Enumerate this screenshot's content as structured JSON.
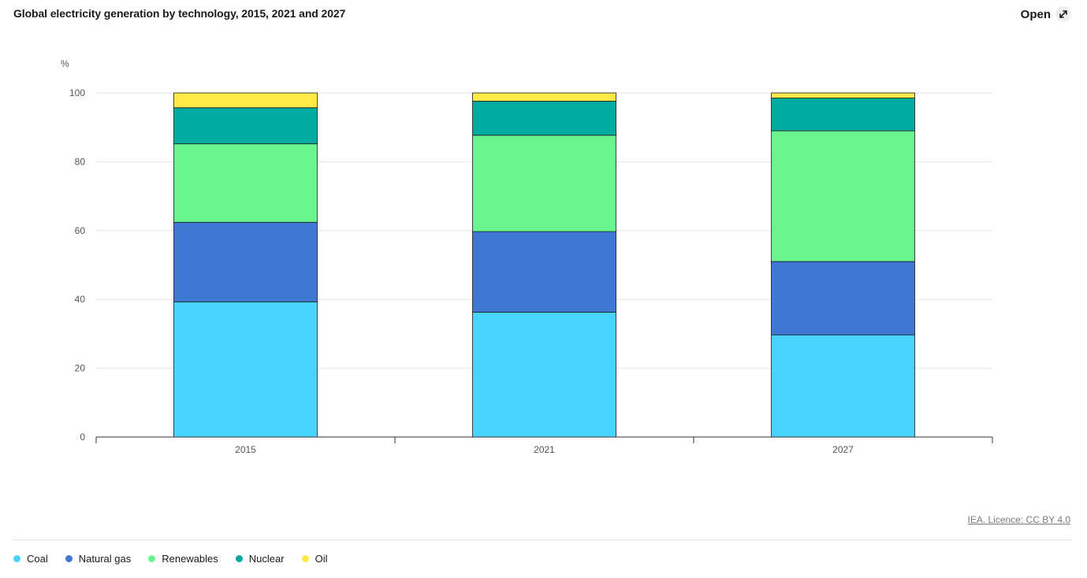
{
  "header": {
    "title": "Global electricity generation by technology, 2015, 2021 and 2027",
    "open_label": "Open"
  },
  "footer": {
    "licence": "IEA. Licence: CC BY 4.0"
  },
  "colors": {
    "Coal": "#48d4ff",
    "Natural gas": "#3e78d2",
    "Renewables": "#6af490",
    "Nuclear": "#00ab9f",
    "Oil": "#ffea47",
    "grid": "#e6e6e6",
    "axis": "#333333"
  },
  "chart_data": {
    "type": "bar",
    "stacked": true,
    "title": "Global electricity generation by technology, 2015, 2021 and 2027",
    "ylabel": "%",
    "xlabel": "",
    "ylim": [
      0,
      100
    ],
    "yticks": [
      0,
      20,
      40,
      60,
      80,
      100
    ],
    "grid": true,
    "legend_position": "bottom-left",
    "categories": [
      "2015",
      "2021",
      "2027"
    ],
    "series": [
      {
        "name": "Coal",
        "values": [
          39.3,
          36.3,
          29.7
        ]
      },
      {
        "name": "Natural gas",
        "values": [
          23.1,
          23.4,
          21.3
        ]
      },
      {
        "name": "Renewables",
        "values": [
          22.8,
          28.0,
          38.0
        ]
      },
      {
        "name": "Nuclear",
        "values": [
          10.5,
          9.9,
          9.5
        ]
      },
      {
        "name": "Oil",
        "values": [
          4.3,
          2.4,
          1.5
        ]
      }
    ]
  }
}
